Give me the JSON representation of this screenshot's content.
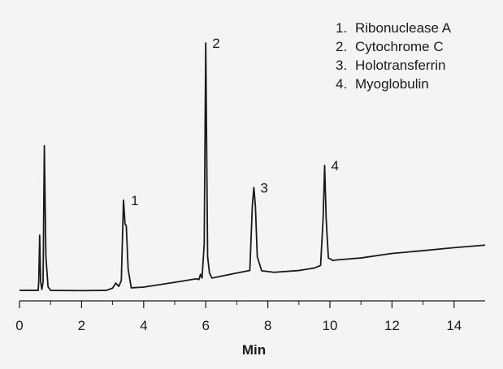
{
  "chart_data": {
    "type": "line",
    "title": "",
    "xlabel": "Min",
    "ylabel": "",
    "xlim": [
      0,
      15
    ],
    "ylim": [
      0,
      100
    ],
    "x_ticks": [
      0,
      2,
      4,
      6,
      8,
      10,
      12,
      14
    ],
    "grid": false,
    "legend_position": "top-right",
    "legend": [
      {
        "label": "Ribonuclease A"
      },
      {
        "label": "Cytochrome C"
      },
      {
        "label": "Holotransferrin"
      },
      {
        "label": "Myoglobulin"
      }
    ],
    "peaks": [
      {
        "label": "1",
        "x": 3.38,
        "y": 37.5
      },
      {
        "label": "2",
        "x": 6.0,
        "y": 100
      },
      {
        "label": "3",
        "x": 7.55,
        "y": 42.5
      },
      {
        "label": "4",
        "x": 9.83,
        "y": 51.3
      }
    ],
    "series": [
      {
        "name": "",
        "color": "#1a1a1a",
        "points": [
          [
            0.0,
            1.6
          ],
          [
            0.6,
            1.6
          ],
          [
            0.62,
            5.0
          ],
          [
            0.65,
            23.6
          ],
          [
            0.68,
            5.0
          ],
          [
            0.72,
            2.0
          ],
          [
            0.76,
            5.0
          ],
          [
            0.8,
            59.1
          ],
          [
            0.85,
            15.0
          ],
          [
            0.92,
            3.0
          ],
          [
            1.0,
            1.6
          ],
          [
            2.0,
            1.5
          ],
          [
            2.8,
            1.6
          ],
          [
            3.0,
            2.5
          ],
          [
            3.1,
            4.5
          ],
          [
            3.2,
            3.2
          ],
          [
            3.28,
            5.5
          ],
          [
            3.35,
            37.5
          ],
          [
            3.4,
            28.0
          ],
          [
            3.44,
            27.3
          ],
          [
            3.5,
            10.0
          ],
          [
            3.6,
            2.6
          ],
          [
            4.0,
            2.9
          ],
          [
            5.0,
            4.8
          ],
          [
            5.7,
            6.2
          ],
          [
            5.78,
            5.9
          ],
          [
            5.83,
            8.0
          ],
          [
            5.88,
            6.5
          ],
          [
            5.95,
            20.0
          ],
          [
            6.0,
            100
          ],
          [
            6.06,
            15.0
          ],
          [
            6.12,
            8.5
          ],
          [
            6.2,
            6.5
          ],
          [
            7.0,
            8.5
          ],
          [
            7.42,
            9.5
          ],
          [
            7.5,
            35.0
          ],
          [
            7.55,
            42.5
          ],
          [
            7.6,
            35.0
          ],
          [
            7.66,
            15.0
          ],
          [
            7.8,
            9.4
          ],
          [
            8.2,
            8.8
          ],
          [
            9.0,
            9.5
          ],
          [
            9.5,
            10.5
          ],
          [
            9.7,
            11.5
          ],
          [
            9.78,
            30.0
          ],
          [
            9.83,
            51.3
          ],
          [
            9.88,
            30.0
          ],
          [
            9.95,
            14.5
          ],
          [
            10.1,
            13.5
          ],
          [
            10.3,
            13.8
          ],
          [
            11.0,
            14.5
          ],
          [
            12.0,
            16.3
          ],
          [
            13.0,
            17.4
          ],
          [
            14.0,
            18.6
          ],
          [
            15.0,
            19.6
          ]
        ]
      }
    ]
  }
}
